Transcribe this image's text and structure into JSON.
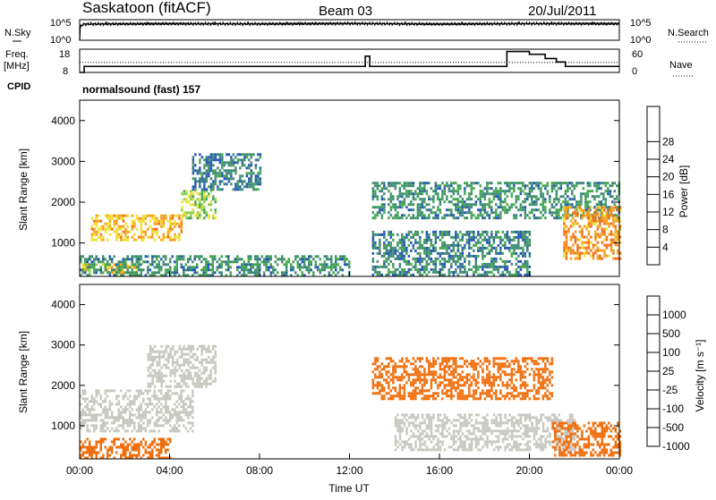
{
  "header": {
    "station": "Saskatoon (fitACF)",
    "beam": "Beam 03",
    "date": "20/Jul/2011"
  },
  "noise_panel": {
    "left_label": "N.Sky",
    "left_ticks": [
      "10^5",
      "10^0"
    ],
    "right_label": "N.Search",
    "right_ticks": [
      "10^5",
      "10^0"
    ]
  },
  "freq_panel": {
    "left_label_line1": "Freq.",
    "left_label_line2": "[MHz]",
    "left_ticks": [
      "18",
      "8"
    ],
    "right_label": "Nave",
    "right_ticks": [
      "60",
      "0"
    ]
  },
  "cpid": {
    "label": "CPID",
    "text": "normalsound (fast) 157"
  },
  "time_axis": {
    "label": "Time UT",
    "ticks": [
      "00:00",
      "04:00",
      "08:00",
      "12:00",
      "16:00",
      "20:00",
      "00:00"
    ]
  },
  "chart_data": [
    {
      "type": "line",
      "panel": "noise",
      "series": [
        {
          "name": "N.Sky",
          "x_hours": [
            0,
            0.2,
            4,
            8,
            12,
            16,
            20,
            24
          ],
          "values": [
            1,
            20000,
            25000,
            22000,
            28000,
            20000,
            26000,
            25000
          ]
        },
        {
          "name": "N.Search",
          "x_hours": [
            0,
            24
          ],
          "values": [
            1,
            1
          ]
        }
      ],
      "ylim": [
        1,
        100000
      ],
      "scale": "log"
    },
    {
      "type": "line",
      "panel": "frequency",
      "series": [
        {
          "name": "Freq.",
          "unit": "MHz",
          "x_hours": [
            0,
            0.2,
            12.5,
            12.7,
            12.9,
            19.0,
            20.0,
            20.7,
            21.2,
            21.6,
            24
          ],
          "values": [
            8,
            10.6,
            10.6,
            15,
            10.6,
            17,
            15.8,
            14,
            12.5,
            10.6,
            10.6
          ]
        },
        {
          "name": "Nave",
          "x_hours": [
            0,
            24
          ],
          "values": [
            26,
            26
          ]
        }
      ],
      "ylim_left": [
        8,
        18
      ],
      "ylim_right": [
        0,
        60
      ]
    },
    {
      "type": "heatmap",
      "panel": "power",
      "ylabel": "Slant Range [km]",
      "xlabel": "Time UT",
      "xlim_hours": [
        0,
        24
      ],
      "ylim_km": [
        180,
        4500
      ],
      "y_ticks": [
        1000,
        2000,
        3000,
        4000
      ],
      "colorbar": {
        "label": "Power [dB]",
        "ticks": [
          4,
          8,
          12,
          16,
          20,
          24,
          28
        ],
        "colors": [
          "#1a1af0",
          "#2659b4",
          "#3f8a78",
          "#45a653",
          "#8cd04a",
          "#f0e030",
          "#f5a020",
          "#f07018",
          "#e83010"
        ]
      },
      "regions": [
        {
          "t": [
            0,
            2.5
          ],
          "r": [
            250,
            500
          ],
          "v": 20
        },
        {
          "t": [
            0.5,
            4.5
          ],
          "r": [
            1100,
            1700
          ],
          "v": 22
        },
        {
          "t": [
            4.5,
            6
          ],
          "r": [
            1600,
            2300
          ],
          "v": 16
        },
        {
          "t": [
            5,
            8
          ],
          "r": [
            2300,
            3200
          ],
          "v": 8
        },
        {
          "t": [
            0,
            12
          ],
          "r": [
            200,
            700
          ],
          "v": 10
        },
        {
          "t": [
            13,
            20
          ],
          "r": [
            200,
            1300
          ],
          "v": 9
        },
        {
          "t": [
            13,
            24
          ],
          "r": [
            1600,
            2500
          ],
          "v": 10
        },
        {
          "t": [
            21.5,
            24
          ],
          "r": [
            600,
            1900
          ],
          "v": 24
        }
      ]
    },
    {
      "type": "heatmap",
      "panel": "velocity",
      "ylabel": "Slant Range [km]",
      "xlabel": "Time UT",
      "xlim_hours": [
        0,
        24
      ],
      "ylim_km": [
        180,
        4500
      ],
      "y_ticks": [
        1000,
        2000,
        3000,
        4000
      ],
      "colorbar": {
        "label": "Velocity [m s⁻¹]",
        "ticks": [
          "1000",
          "500",
          "100",
          "25",
          "-25",
          "-100",
          "-500",
          "-1000"
        ],
        "colors": [
          "#1f30b0",
          "#2a5aa0",
          "#2e8a48",
          "#70c840",
          "#c8c8c0",
          "#f0a020",
          "#f07010",
          "#e83010"
        ]
      },
      "regions": [
        {
          "t": [
            0,
            5
          ],
          "r": [
            900,
            1900
          ],
          "v": 0
        },
        {
          "t": [
            0,
            4
          ],
          "r": [
            200,
            700
          ],
          "v": -300
        },
        {
          "t": [
            3,
            6
          ],
          "r": [
            2000,
            3000
          ],
          "v": 0
        },
        {
          "t": [
            13,
            21
          ],
          "r": [
            1700,
            2700
          ],
          "v": -400
        },
        {
          "t": [
            14,
            22
          ],
          "r": [
            400,
            1300
          ],
          "v": 0
        },
        {
          "t": [
            21,
            24
          ],
          "r": [
            300,
            1100
          ],
          "v": -300
        }
      ]
    }
  ]
}
